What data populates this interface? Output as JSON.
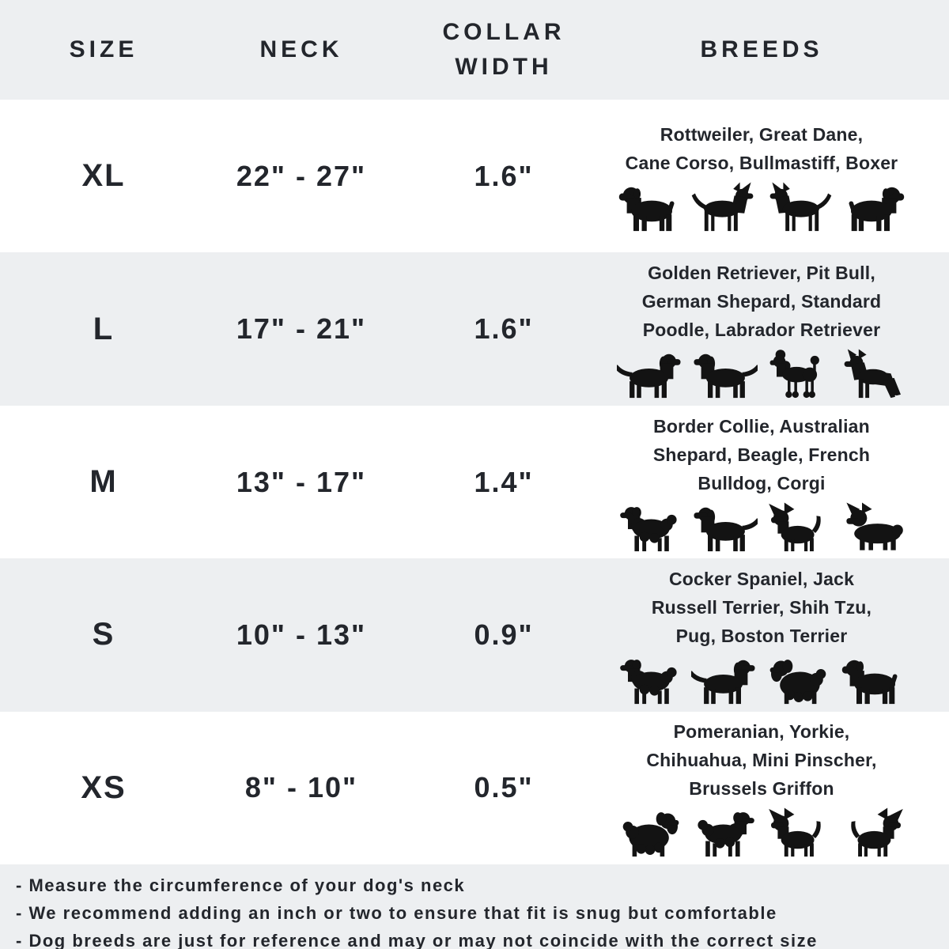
{
  "colors": {
    "text": "#23262c",
    "row_alt_bg": "#edeff1",
    "row_bg": "#ffffff",
    "icon": "#131313"
  },
  "chart_data": {
    "type": "table",
    "title": "Dog collar size chart",
    "columns": [
      "SIZE",
      "NECK",
      "COLLAR WIDTH",
      "BREEDS"
    ],
    "rows": [
      [
        "XL",
        "22\" - 27\"",
        "1.6\"",
        "Rottweiler, Great Dane, Cane Corso, Bullmastiff, Boxer"
      ],
      [
        "L",
        "17\" - 21\"",
        "1.6\"",
        "Golden Retriever, Pit Bull, German Shepard, Standard Poodle, Labrador Retriever"
      ],
      [
        "M",
        "13\" - 17\"",
        "1.4\"",
        "Border Collie, Australian Shepard, Beagle, French Bulldog, Corgi"
      ],
      [
        "S",
        "10\" - 13\"",
        "0.9\"",
        "Cocker Spaniel, Jack Russell Terrier, Shih Tzu, Pug, Boston Terrier"
      ],
      [
        "XS",
        "8\" - 10\"",
        "0.5\"",
        "Pomeranian, Yorkie, Chihuahua, Mini Pinscher, Brussels Griffon"
      ]
    ],
    "notes": [
      "- Measure the circumference of your dog's neck",
      "- We recommend adding an inch or two to ensure that fit is snug but comfortable",
      "- Dog breeds are just for reference and may or may not coincide with the correct size"
    ]
  },
  "ui": {
    "headers": {
      "size": "SIZE",
      "neck": "NECK",
      "collar_width": "COLLAR WIDTH",
      "breeds": "BREEDS"
    },
    "rows": [
      {
        "size": "XL",
        "neck": "22\" - 27\"",
        "collar_width": "1.6\"",
        "breeds_lines": [
          "Rottweiler, Great Dane,",
          "Cane Corso, Bullmastiff, Boxer"
        ],
        "icons": [
          {
            "name": "rottweiler-icon",
            "shape": "dog-stocky"
          },
          {
            "name": "great-dane-icon",
            "shape": "dog-lean",
            "flip": true
          },
          {
            "name": "cane-corso-icon",
            "shape": "dog-lean"
          },
          {
            "name": "bullmastiff-icon",
            "shape": "dog-stocky",
            "flip": true
          }
        ]
      },
      {
        "size": "L",
        "neck": "17\" - 21\"",
        "collar_width": "1.6\"",
        "breeds_lines": [
          "Golden Retriever, Pit Bull,",
          "German Shepard, Standard",
          "Poodle, Labrador Retriever"
        ],
        "icons": [
          {
            "name": "golden-retriever-icon",
            "shape": "dog-retriever",
            "flip": true
          },
          {
            "name": "labrador-retriever-icon",
            "shape": "dog-retriever"
          },
          {
            "name": "standard-poodle-icon",
            "shape": "dog-poodle"
          },
          {
            "name": "german-shepherd-icon",
            "shape": "dog-shepherd"
          }
        ]
      },
      {
        "size": "M",
        "neck": "13\" - 17\"",
        "collar_width": "1.4\"",
        "breeds_lines": [
          "Border Collie, Australian",
          "Shepard, Beagle, French",
          "Bulldog, Corgi"
        ],
        "icons": [
          {
            "name": "australian-shepherd-icon",
            "shape": "dog-fluffy"
          },
          {
            "name": "beagle-icon",
            "shape": "dog-retriever"
          },
          {
            "name": "french-bulldog-icon",
            "shape": "dog-pointy-small"
          },
          {
            "name": "corgi-icon",
            "shape": "dog-corgi"
          }
        ]
      },
      {
        "size": "S",
        "neck": "10\" - 13\"",
        "collar_width": "0.9\"",
        "breeds_lines": [
          "Cocker Spaniel, Jack",
          "Russell Terrier, Shih Tzu,",
          "Pug, Boston Terrier"
        ],
        "icons": [
          {
            "name": "cocker-spaniel-icon",
            "shape": "dog-fluffy"
          },
          {
            "name": "jack-russell-terrier-icon",
            "shape": "dog-retriever",
            "flip": true
          },
          {
            "name": "shih-tzu-icon",
            "shape": "dog-shihtzu"
          },
          {
            "name": "pug-icon",
            "shape": "dog-stocky"
          }
        ]
      },
      {
        "size": "XS",
        "neck": "8\" - 10\"",
        "collar_width": "0.5\"",
        "breeds_lines": [
          "Pomeranian, Yorkie,",
          "Chihuahua, Mini Pinscher,",
          "Brussels Griffon"
        ],
        "icons": [
          {
            "name": "pomeranian-icon",
            "shape": "dog-shihtzu",
            "flip": true
          },
          {
            "name": "yorkie-icon",
            "shape": "dog-fluffy",
            "flip": true
          },
          {
            "name": "chihuahua-icon",
            "shape": "dog-pointy-small"
          },
          {
            "name": "min-pin-icon",
            "shape": "dog-pointy-small",
            "flip": true
          }
        ]
      }
    ],
    "notes": [
      "- Measure the circumference of your dog's neck",
      "- We recommend adding an inch or two to ensure that fit is snug but comfortable",
      "- Dog breeds are just for reference and may or may not coincide with the correct size"
    ]
  }
}
